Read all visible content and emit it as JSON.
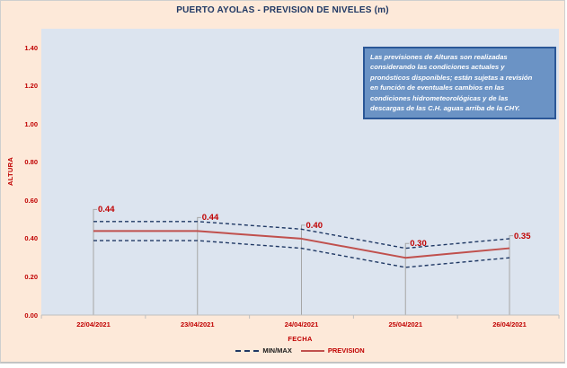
{
  "title": "PUERTO AYOLAS - PREVISION DE NIVELES (m)",
  "note_box": {
    "lines": [
      "Las previsiones de Alturas son realizadas",
      "considerando las condiciones actuales y",
      "pronósticos disponibles;  están sujetas a revisión",
      "en función de eventuales cambios en las",
      "condiciones hidrometeorológicas y de las",
      "descargas de las C.H. aguas arriba de la CHY."
    ]
  },
  "chart_data": {
    "type": "line",
    "title": "PUERTO AYOLAS - PREVISION DE NIVELES (m)",
    "xlabel": "FECHA",
    "ylabel": "ALTURA",
    "categories": [
      "22/04/2021",
      "23/04/2021",
      "24/04/2021",
      "25/04/2021",
      "26/04/2021"
    ],
    "series": [
      {
        "name": "PREVISION",
        "style": "solid",
        "color": "#c0504d",
        "values": [
          0.44,
          0.44,
          0.4,
          0.3,
          0.35
        ]
      },
      {
        "name": "MAX",
        "style": "dashed",
        "color": "#1f3864",
        "values": [
          0.49,
          0.49,
          0.45,
          0.35,
          0.4
        ]
      },
      {
        "name": "MIN",
        "style": "dashed",
        "color": "#1f3864",
        "values": [
          0.39,
          0.39,
          0.35,
          0.25,
          0.3
        ]
      }
    ],
    "data_labels": [
      "0.44",
      "0.44",
      "0.40",
      "0.30",
      "0.35"
    ],
    "yticks": [
      "0.00",
      "0.20",
      "0.40",
      "0.60",
      "0.80",
      "1.00",
      "1.20",
      "1.40"
    ],
    "ylim": [
      0,
      1.5
    ],
    "grid": false,
    "drop_lines": true,
    "legend_position": "bottom"
  },
  "legend": {
    "items": [
      {
        "label": "MIN/MAX",
        "sample": "dashed",
        "text_color": "#1a1a1a"
      },
      {
        "label": "PREVISION",
        "sample": "solid",
        "text_color": "#c00000"
      }
    ]
  },
  "colors": {
    "chart_bg": "#fde9d9",
    "plot_bg": "#dce4ef",
    "title": "#1f3864",
    "axis_text": "#c00000",
    "prevision_line": "#c0504d",
    "minmax_line": "#1f3864",
    "note_bg": "#6b93c5",
    "note_border": "#2b5797",
    "note_text": "#ffffff",
    "drop_line": "#a6a6a6",
    "axis_line": "#bfbfbf"
  }
}
